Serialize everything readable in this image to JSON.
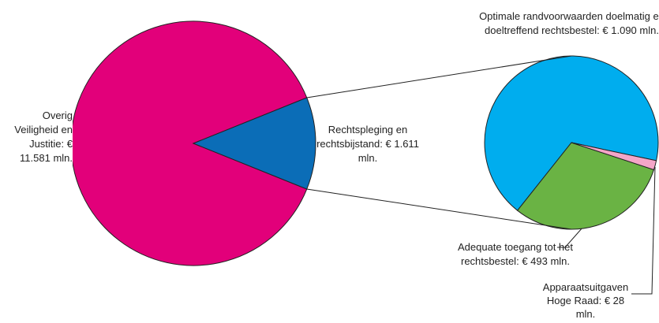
{
  "chart_data": [
    {
      "type": "pie",
      "categories": [
        "Overig Veiligheid en Justitie:",
        "Rechtspleging en rechtsbijstand:"
      ],
      "values": [
        11581,
        1611
      ],
      "value_labels": [
        "€ 11.581 mln.",
        "€ 1.611 mln."
      ],
      "colors": [
        "#e2007a",
        "#0b6db7"
      ]
    },
    {
      "type": "pie",
      "categories": [
        "Optimale randvoorwaarden doelmatig en doeltreffend rechtsbestel:",
        "Adequate toegang tot het rechtsbestel:",
        "Apparaatsuitgaven Hoge Raad:"
      ],
      "values": [
        1090,
        493,
        28
      ],
      "value_labels": [
        "€ 1.090 mln.",
        "€ 493 mln.",
        "€ 28 mln."
      ],
      "colors": [
        "#00adee",
        "#6ab344",
        "#f4a6c8"
      ]
    }
  ]
}
